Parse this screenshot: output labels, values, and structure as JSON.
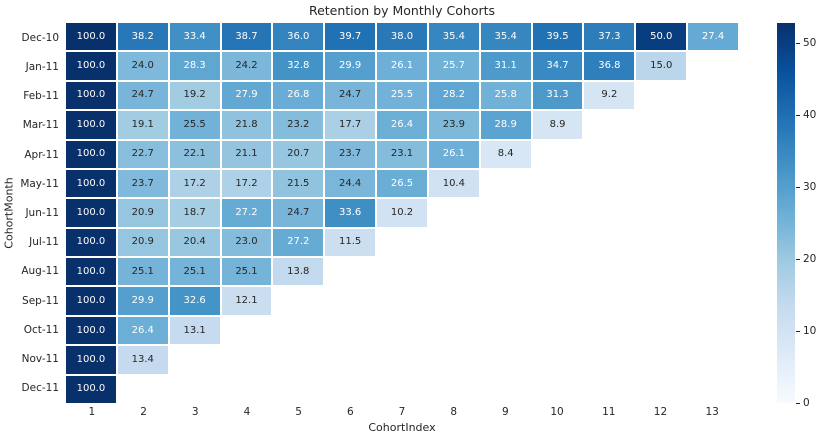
{
  "chart_data": {
    "type": "heatmap",
    "title": "Retention by Monthly Cohorts",
    "xlabel": "CohortIndex",
    "ylabel": "CohortMonth",
    "x_ticks": [
      "1",
      "2",
      "3",
      "4",
      "5",
      "6",
      "7",
      "8",
      "9",
      "10",
      "11",
      "12",
      "13"
    ],
    "y_ticks": [
      "Dec-10",
      "Jan-11",
      "Feb-11",
      "Mar-11",
      "Apr-11",
      "May-11",
      "Jun-11",
      "Jul-11",
      "Aug-11",
      "Sep-11",
      "Oct-11",
      "Nov-11",
      "Dec-11"
    ],
    "rows": [
      [
        100.0,
        38.2,
        33.4,
        38.7,
        36.0,
        39.7,
        38.0,
        35.4,
        35.4,
        39.5,
        37.3,
        50.0,
        27.4
      ],
      [
        100.0,
        24.0,
        28.3,
        24.2,
        32.8,
        29.9,
        26.1,
        25.7,
        31.1,
        34.7,
        36.8,
        15.0,
        null
      ],
      [
        100.0,
        24.7,
        19.2,
        27.9,
        26.8,
        24.7,
        25.5,
        28.2,
        25.8,
        31.3,
        9.2,
        null,
        null
      ],
      [
        100.0,
        19.1,
        25.5,
        21.8,
        23.2,
        17.7,
        26.4,
        23.9,
        28.9,
        8.9,
        null,
        null,
        null
      ],
      [
        100.0,
        22.7,
        22.1,
        21.1,
        20.7,
        23.7,
        23.1,
        26.1,
        8.4,
        null,
        null,
        null,
        null
      ],
      [
        100.0,
        23.7,
        17.2,
        17.2,
        21.5,
        24.4,
        26.5,
        10.4,
        null,
        null,
        null,
        null,
        null
      ],
      [
        100.0,
        20.9,
        18.7,
        27.2,
        24.7,
        33.6,
        10.2,
        null,
        null,
        null,
        null,
        null,
        null
      ],
      [
        100.0,
        20.9,
        20.4,
        23.0,
        27.2,
        11.5,
        null,
        null,
        null,
        null,
        null,
        null,
        null
      ],
      [
        100.0,
        25.1,
        25.1,
        25.1,
        13.8,
        null,
        null,
        null,
        null,
        null,
        null,
        null,
        null
      ],
      [
        100.0,
        29.9,
        32.6,
        12.1,
        null,
        null,
        null,
        null,
        null,
        null,
        null,
        null,
        null
      ],
      [
        100.0,
        26.4,
        13.1,
        null,
        null,
        null,
        null,
        null,
        null,
        null,
        null,
        null,
        null
      ],
      [
        100.0,
        13.4,
        null,
        null,
        null,
        null,
        null,
        null,
        null,
        null,
        null,
        null,
        null
      ],
      [
        100.0,
        null,
        null,
        null,
        null,
        null,
        null,
        null,
        null,
        null,
        null,
        null,
        null
      ]
    ],
    "value_format_decimals": 1,
    "colormap": "Blues",
    "colormap_stops": [
      "#f7fbff",
      "#deebf7",
      "#c6dbef",
      "#9ecae1",
      "#6baed6",
      "#4292c6",
      "#2171b5",
      "#08519c",
      "#08306b"
    ],
    "color_range": [
      0,
      52.8
    ],
    "colorbar_ticks": [
      0,
      10,
      20,
      30,
      40,
      50
    ],
    "annotation_dark_text": "#262626",
    "annotation_light_text": "#ffffff",
    "legend_position": "right",
    "grid": false,
    "text_color_overrides": [
      {
        "row": 3,
        "col": 2,
        "color": "dark"
      }
    ]
  }
}
